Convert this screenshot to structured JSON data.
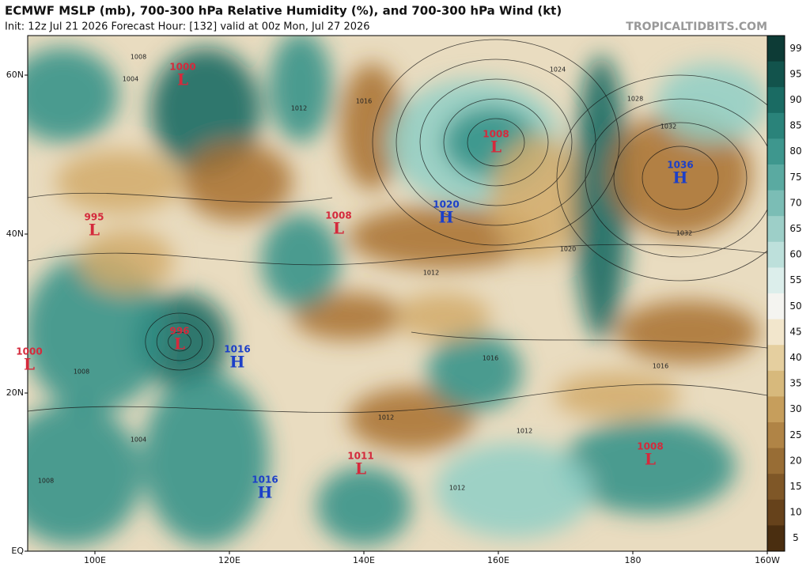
{
  "header": {
    "title": "ECMWF MSLP (mb), 700-300 hPa Relative Humidity (%), and 700-300 hPa Wind (kt)",
    "subtitle": "Init: 12z Jul 21 2026   Forecast Hour: [132]   valid at 00z Mon, Jul 27 2026",
    "watermark": "TROPICALTIDBITS.COM"
  },
  "map": {
    "lat_labels": [
      "60N",
      "40N",
      "20N",
      "EQ"
    ],
    "lon_labels": [
      "100E",
      "120E",
      "140E",
      "160E",
      "180",
      "160W"
    ],
    "centers": [
      {
        "letter": "L",
        "value": 1000
      },
      {
        "letter": "L",
        "value": 995
      },
      {
        "letter": "L",
        "value": 1008
      },
      {
        "letter": "H",
        "value": 1020
      },
      {
        "letter": "L",
        "value": 1008
      },
      {
        "letter": "H",
        "value": 1036
      },
      {
        "letter": "L",
        "value": 996
      },
      {
        "letter": "H",
        "value": 1016
      },
      {
        "letter": "L",
        "value": 1000
      },
      {
        "letter": "L",
        "value": 1011
      },
      {
        "letter": "H",
        "value": 1016
      },
      {
        "letter": "L",
        "value": 1008
      }
    ],
    "isobar_labels": [
      1008,
      1004,
      1012,
      1016,
      1024,
      1028,
      1032,
      1032,
      1020,
      1016,
      1016,
      1012,
      1012,
      1012,
      1008,
      1004,
      1008,
      1012
    ]
  },
  "colorbar": {
    "ticks": [
      99,
      95,
      90,
      85,
      80,
      75,
      70,
      65,
      60,
      55,
      50,
      45,
      40,
      35,
      30,
      25,
      20,
      15,
      10,
      5
    ]
  }
}
